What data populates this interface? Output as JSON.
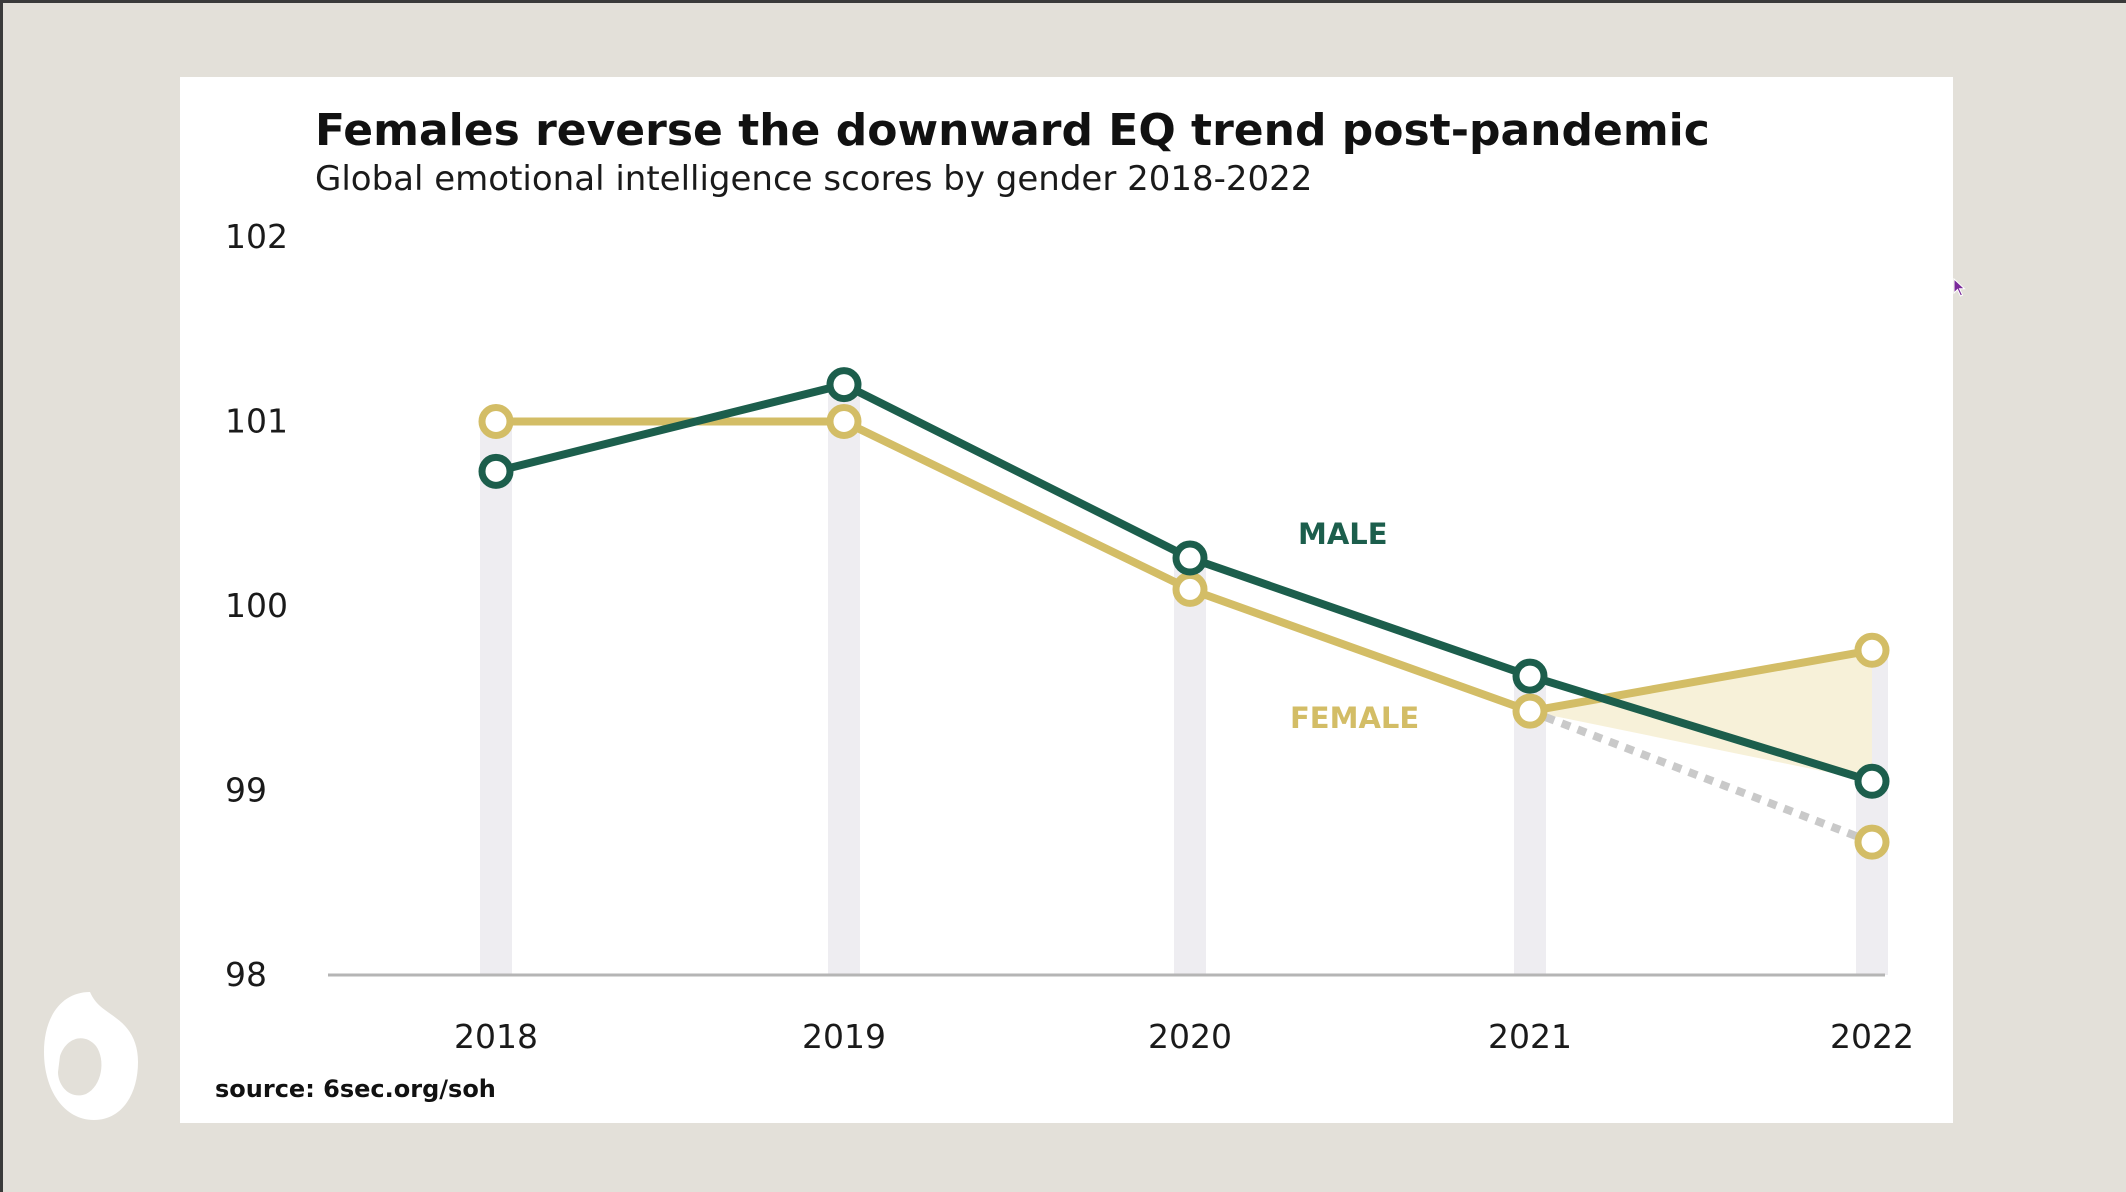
{
  "chart_data": {
    "type": "line",
    "title": "Females reverse the downward EQ trend post-pandemic",
    "subtitle": "Global emotional intelligence scores by gender 2018-2022",
    "x": [
      "2018",
      "2019",
      "2020",
      "2021",
      "2022"
    ],
    "yticks": [
      "98",
      "99",
      "100",
      "101",
      "102"
    ],
    "ylim": [
      98,
      102
    ],
    "series": [
      {
        "name": "MALE",
        "color": "#1c5e4c",
        "values": [
          100.73,
          101.2,
          100.26,
          99.62,
          99.05
        ]
      },
      {
        "name": "FEMALE",
        "color": "#d3bd66",
        "values": [
          101.0,
          101.0,
          100.09,
          99.43,
          99.76
        ]
      }
    ],
    "projection": {
      "color": "#c9c9c9",
      "from": [
        "2021",
        99.43
      ],
      "to": [
        "2022",
        98.72
      ]
    },
    "shaded_gap_color": "#f7f1d9",
    "column_color": "#eeedf1",
    "axis_color": "#b5b5b5",
    "grid": false,
    "source": "source: 6sec.org/soh"
  },
  "background_color": "#e3e0d9"
}
